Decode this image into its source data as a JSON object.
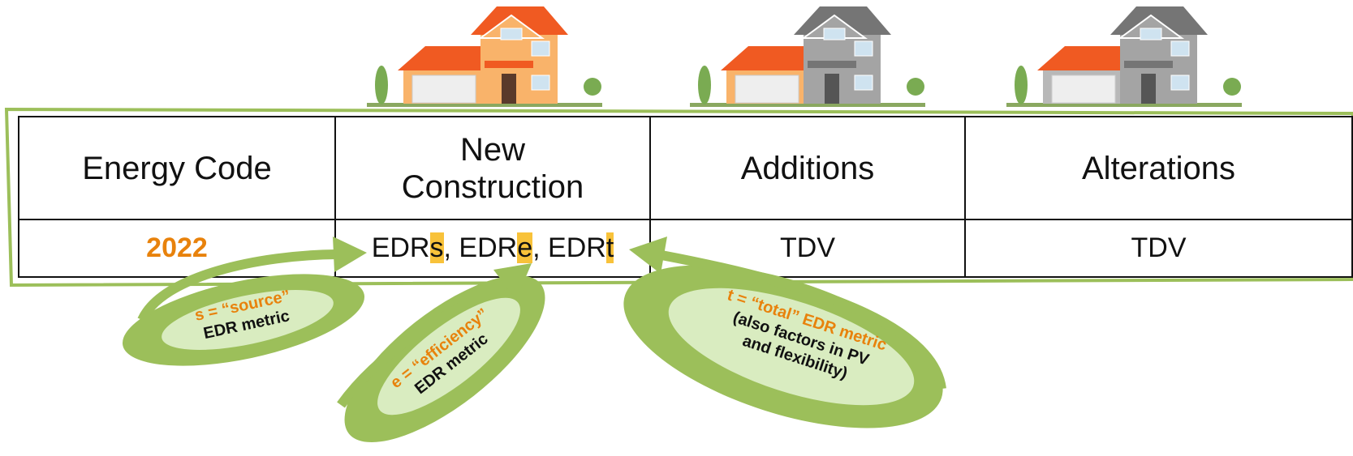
{
  "table": {
    "header": [
      "Energy Code",
      "New Construction",
      "Additions",
      "Alterations"
    ],
    "rows": [
      [
        "2022",
        {
          "separator": ", ",
          "metrics": [
            {
              "base": "EDR",
              "letter": "s"
            },
            {
              "base": "EDR",
              "letter": "e"
            },
            {
              "base": "EDR",
              "letter": "t"
            }
          ]
        },
        "TDV",
        "TDV"
      ]
    ]
  },
  "callouts": [
    {
      "lines": [
        "s = “source”",
        "EDR metric"
      ]
    },
    {
      "lines": [
        "e = “efficiency”",
        "EDR metric"
      ]
    },
    {
      "lines": [
        "t = “total” EDR metric",
        "(also factors in PV",
        "and flexibility)"
      ]
    }
  ]
}
